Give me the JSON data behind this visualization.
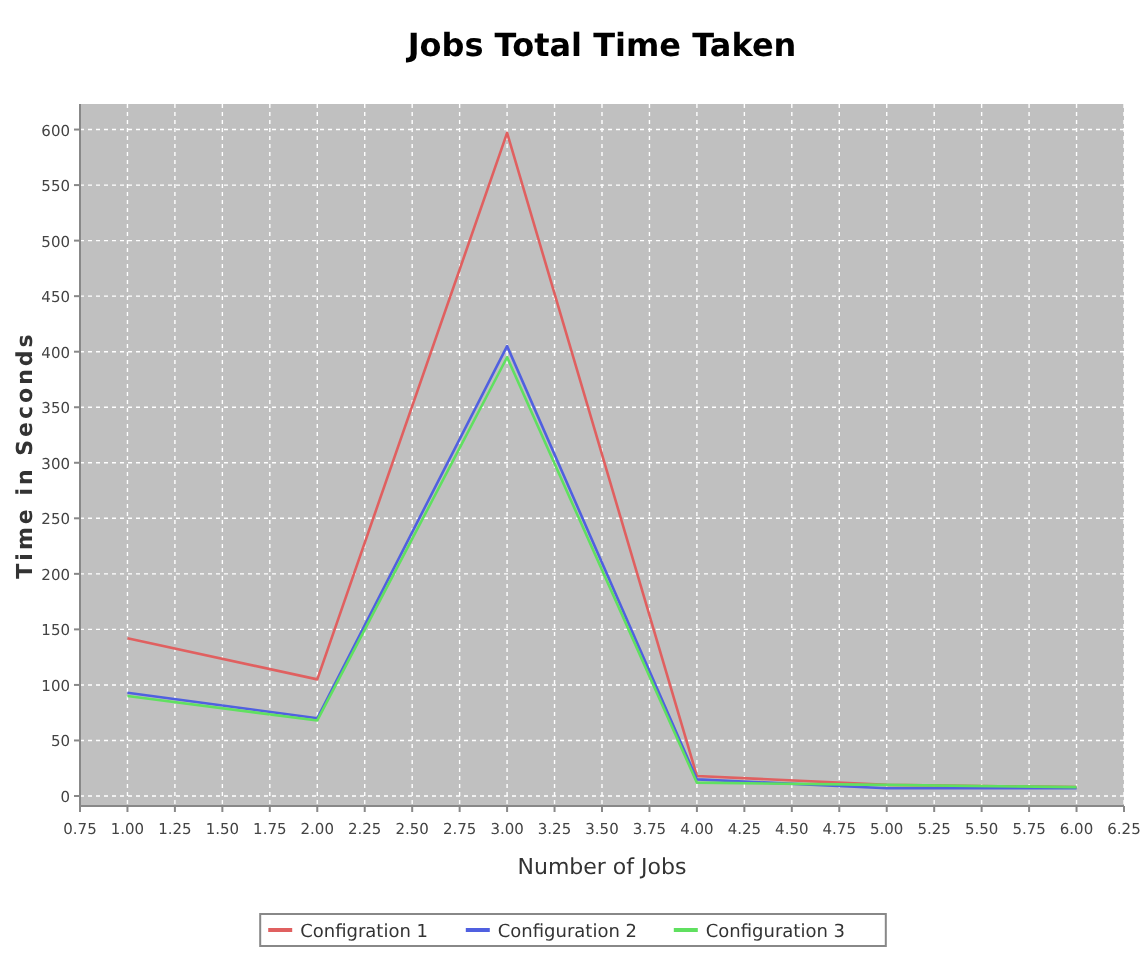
{
  "chart_data": {
    "type": "line",
    "title": "Jobs Total Time Taken",
    "xlabel": "Number of Jobs",
    "ylabel": "Time in Seconds",
    "x": [
      1,
      2,
      3,
      4,
      5,
      6
    ],
    "series": [
      {
        "name": "Configration 1",
        "color": "#e06060",
        "values": [
          142,
          105,
          597,
          18,
          10,
          8
        ]
      },
      {
        "name": "Configuration 2",
        "color": "#5060e0",
        "values": [
          93,
          70,
          405,
          15,
          7,
          7
        ]
      },
      {
        "name": "Configuration 3",
        "color": "#60e060",
        "values": [
          90,
          68,
          395,
          12,
          10,
          8
        ]
      }
    ],
    "xlim": [
      0.75,
      6.25
    ],
    "xticks": [
      {
        "value": 0.75,
        "label": "0.75"
      },
      {
        "value": 1,
        "label": "1.00"
      },
      {
        "value": 1.25,
        "label": "1.25"
      },
      {
        "value": 1.5,
        "label": "1.50"
      },
      {
        "value": 1.75,
        "label": "1.75"
      },
      {
        "value": 2,
        "label": "2.00"
      },
      {
        "value": 2.25,
        "label": "2.25"
      },
      {
        "value": 2.5,
        "label": "2.50"
      },
      {
        "value": 2.75,
        "label": "2.75"
      },
      {
        "value": 3,
        "label": "3.00"
      },
      {
        "value": 3.25,
        "label": "3.25"
      },
      {
        "value": 3.5,
        "label": "3.50"
      },
      {
        "value": 3.75,
        "label": "3.75"
      },
      {
        "value": 4,
        "label": "4.00"
      },
      {
        "value": 4.25,
        "label": "4.25"
      },
      {
        "value": 4.5,
        "label": "4.50"
      },
      {
        "value": 4.75,
        "label": "4.75"
      },
      {
        "value": 5,
        "label": "5.00"
      },
      {
        "value": 5.25,
        "label": "5.25"
      },
      {
        "value": 5.5,
        "label": "5.50"
      },
      {
        "value": 5.75,
        "label": "5.75"
      },
      {
        "value": 6,
        "label": "6.00"
      },
      {
        "value": 6.25,
        "label": "6.25"
      }
    ],
    "ylim": [
      -9,
      623
    ],
    "yticks": [
      0,
      50,
      100,
      150,
      200,
      250,
      300,
      350,
      400,
      450,
      500,
      550,
      600
    ],
    "grid": true,
    "legend": "bottom",
    "marker": "none",
    "line_style": "solid"
  }
}
